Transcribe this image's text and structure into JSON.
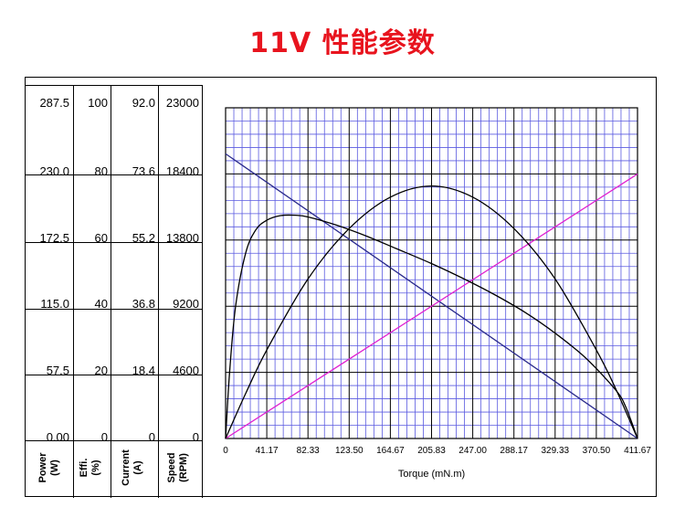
{
  "title": "11V 性能参数",
  "chart_data": {
    "type": "line",
    "title": "11V 性能参数",
    "xlabel": "Torque (mN.m)",
    "xlim": [
      0,
      411.67
    ],
    "x_ticks": [
      "0",
      "41.17",
      "82.33",
      "123.50",
      "164.67",
      "205.83",
      "247.00",
      "288.17",
      "329.33",
      "370.50",
      "411.67"
    ],
    "axes": [
      {
        "name": "Power",
        "unit": "(W)",
        "max": 287.5,
        "ticks": [
          "287.5",
          "230.0",
          "172.5",
          "115.0",
          "57.5",
          "0.00"
        ]
      },
      {
        "name": "Effi.",
        "unit": "(%)",
        "max": 100,
        "ticks": [
          "100",
          "80",
          "60",
          "40",
          "20",
          "0"
        ]
      },
      {
        "name": "Current",
        "unit": "(A)",
        "max": 92.0,
        "ticks": [
          "92.0",
          "73.6",
          "55.2",
          "36.8",
          "18.4",
          "0"
        ]
      },
      {
        "name": "Speed",
        "unit": "(RPM)",
        "max": 23000,
        "ticks": [
          "23000",
          "18400",
          "13800",
          "9200",
          "4600",
          "0"
        ]
      }
    ],
    "grid": true,
    "series": [
      {
        "axis": "Speed",
        "color": "#2a2a8c",
        "x": [
          0,
          411.67
        ],
        "y": [
          19800,
          0
        ]
      },
      {
        "axis": "Current",
        "color": "#e020d0",
        "x": [
          0,
          411.67
        ],
        "y": [
          0,
          73.6
        ]
      },
      {
        "axis": "Effi.",
        "color": "#000000",
        "x": [
          0,
          4,
          10,
          20,
          30,
          41.17,
          55,
          70,
          82.33,
          110,
          140,
          170,
          205,
          240,
          270,
          300,
          330,
          360,
          390,
          400,
          411.67
        ],
        "y": [
          0,
          20,
          40,
          56,
          63,
          66,
          67.4,
          67.5,
          67,
          64.6,
          61.3,
          57.5,
          53,
          48,
          43.3,
          38,
          31.7,
          24.3,
          14.6,
          9.5,
          0
        ]
      },
      {
        "axis": "Power",
        "color": "#000000",
        "x": [
          0,
          20,
          41.17,
          82.33,
          123.5,
          164.67,
          205.83,
          247,
          288.17,
          329.33,
          370.5,
          390,
          411.67
        ],
        "y": [
          0,
          39,
          77,
          138.7,
          182.5,
          209.8,
          219.5,
          209.8,
          182.5,
          138.7,
          77,
          43,
          0
        ]
      }
    ]
  },
  "icons": {
    "line-color-speed": "#2a2a8c",
    "line-color-current": "#e020d0"
  }
}
